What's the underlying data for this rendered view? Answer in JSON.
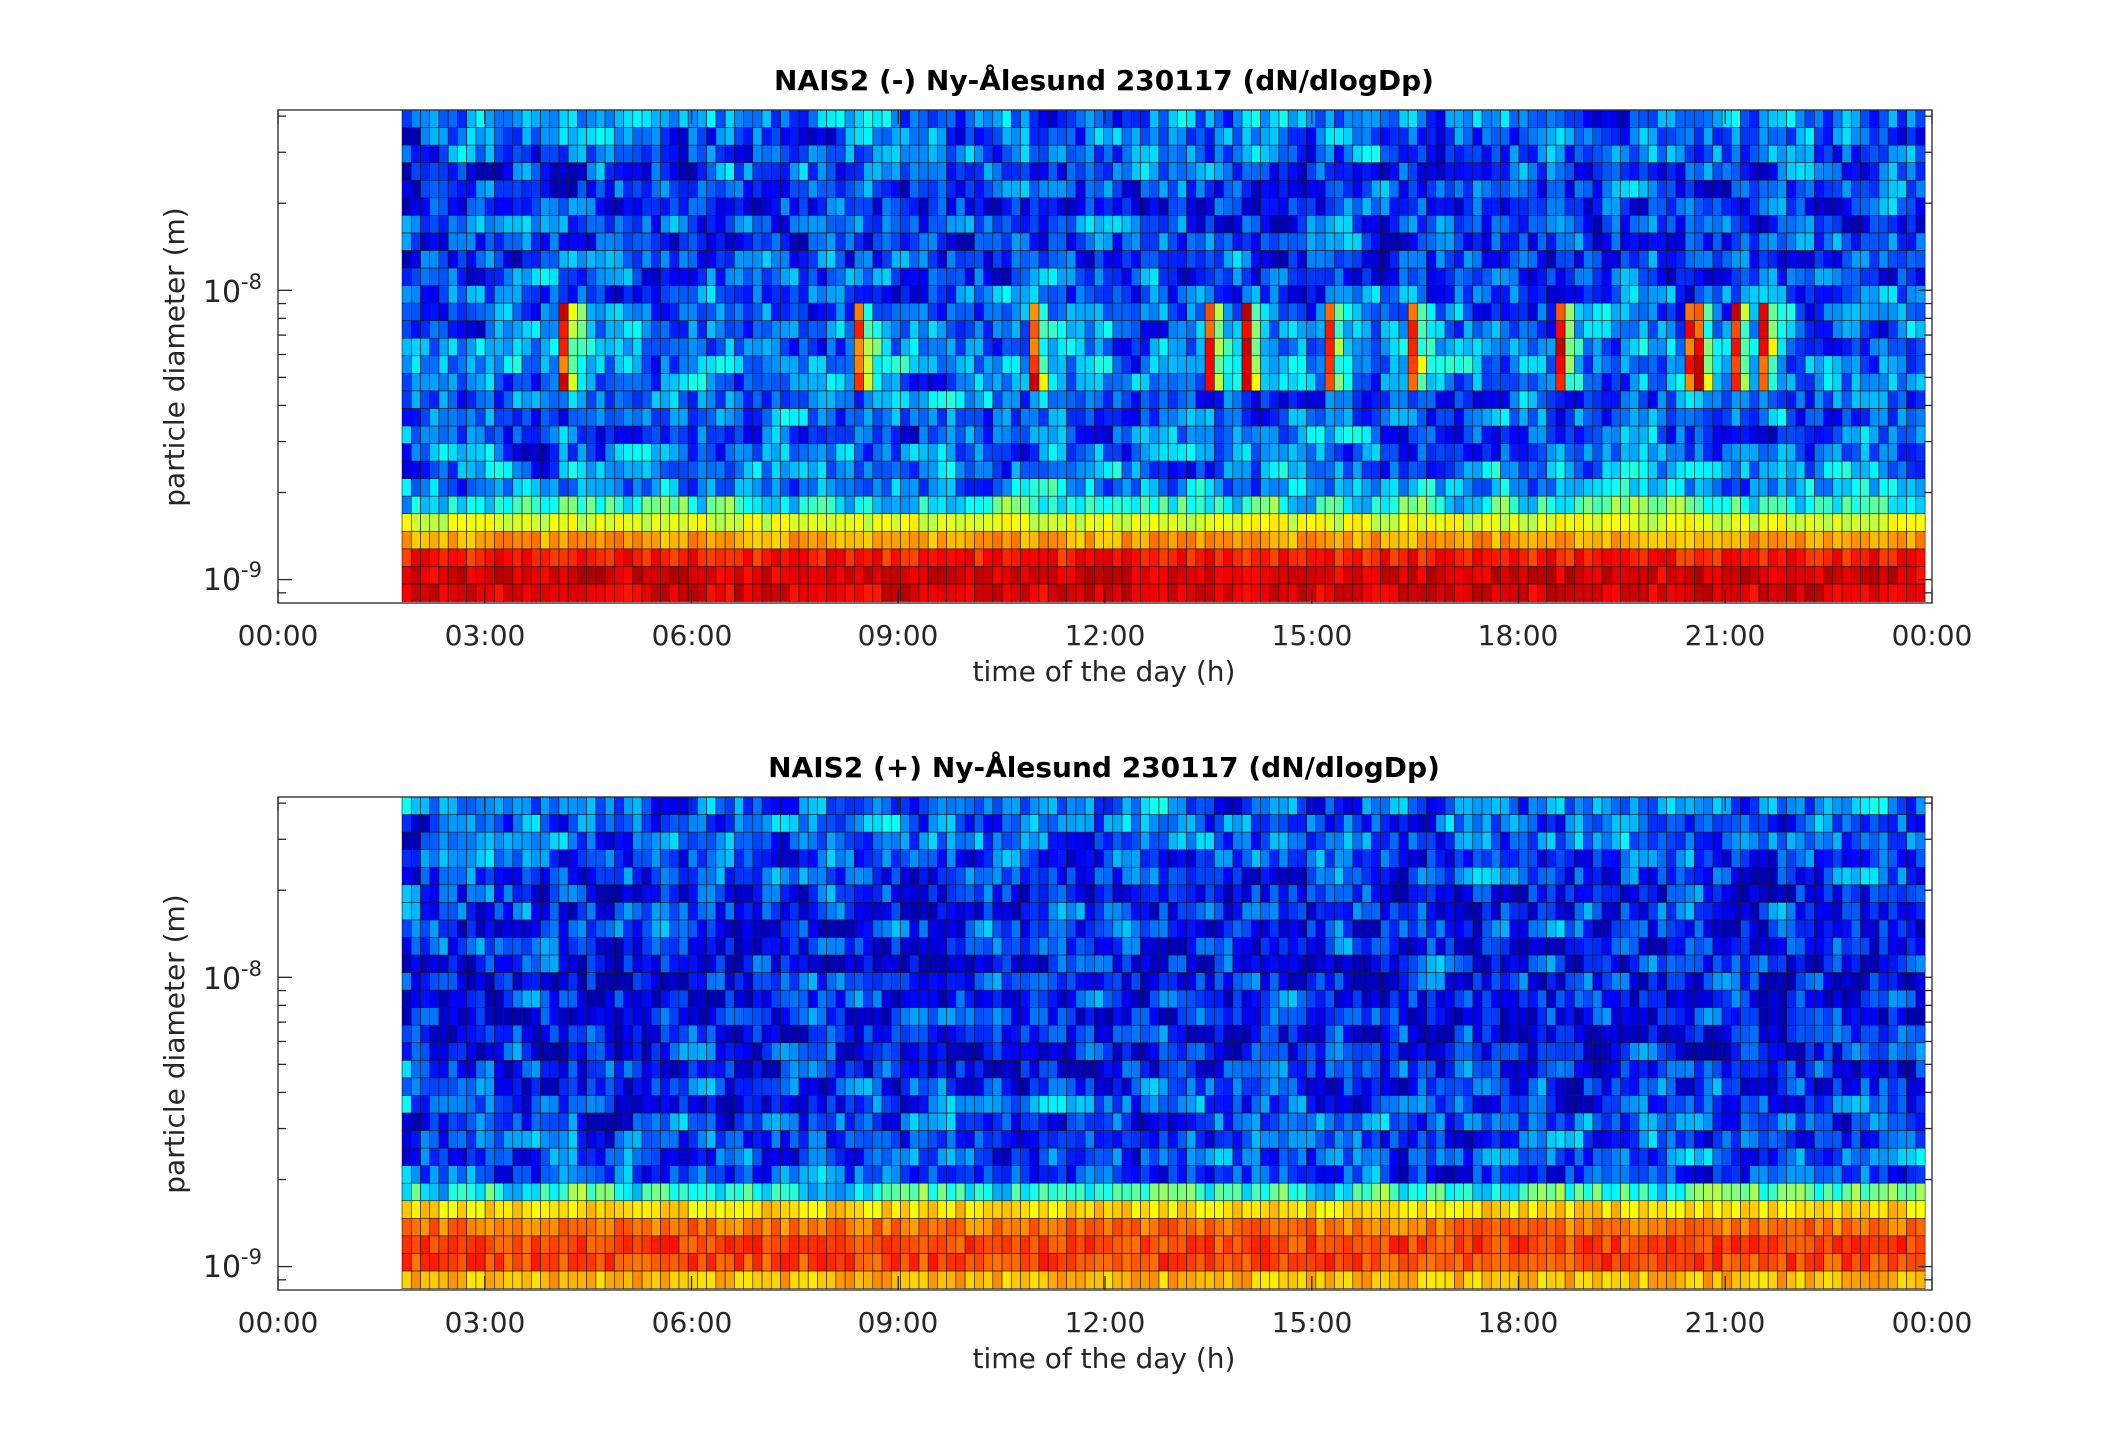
{
  "chart_data": [
    {
      "type": "heatmap",
      "title": "NAIS2 (-) Ny-Ålesund 230117 (dN/dlogDp)",
      "xlabel": "time of the day (h)",
      "ylabel": "particle diameter (m)",
      "x_tick_labels": [
        "00:00",
        "03:00",
        "06:00",
        "09:00",
        "12:00",
        "15:00",
        "18:00",
        "21:00",
        "00:00"
      ],
      "x_range_hours": [
        0,
        24
      ],
      "data_start_hour": 1.8,
      "data_end_hour": 23.9,
      "y_scale": "log",
      "y_range_m": [
        8.3e-10,
        4.2e-08
      ],
      "y_tick_labels": [
        {
          "base": "10",
          "exponent": "-9",
          "value": 1e-09
        },
        {
          "base": "10",
          "exponent": "-8",
          "value": 1e-08
        }
      ],
      "colormap": "jet",
      "grid": false,
      "legend": "none",
      "concentration_profile_by_size_m": [
        {
          "diameter_m": 8.9e-10,
          "relative_level": 0.9
        },
        {
          "diameter_m": 1e-09,
          "relative_level": 0.92
        },
        {
          "diameter_m": 1.13e-09,
          "relative_level": 0.88
        },
        {
          "diameter_m": 1.27e-09,
          "relative_level": 0.82
        },
        {
          "diameter_m": 1.43e-09,
          "relative_level": 0.66
        },
        {
          "diameter_m": 1.61e-09,
          "relative_level": 0.58
        },
        {
          "diameter_m": 1.81e-09,
          "relative_level": 0.42
        },
        {
          "diameter_m": 2.04e-09,
          "relative_level": 0.28
        },
        {
          "diameter_m": 3e-09,
          "relative_level": 0.22
        },
        {
          "diameter_m": 6e-09,
          "relative_level": 0.26
        },
        {
          "diameter_m": 1e-08,
          "relative_level": 0.2
        },
        {
          "diameter_m": 2e-08,
          "relative_level": 0.18
        },
        {
          "diameter_m": 4e-08,
          "relative_level": 0.24
        }
      ],
      "notes_visible": "high concentration (red/orange) band below ~1.5e-9 m throughout the day; sporadic high bursts near 6e-9 m"
    },
    {
      "type": "heatmap",
      "title": "NAIS2 (+) Ny-Ålesund 230117 (dN/dlogDp)",
      "xlabel": "time of the day (h)",
      "ylabel": "particle diameter (m)",
      "x_tick_labels": [
        "00:00",
        "03:00",
        "06:00",
        "09:00",
        "12:00",
        "15:00",
        "18:00",
        "21:00",
        "00:00"
      ],
      "x_range_hours": [
        0,
        24
      ],
      "data_start_hour": 1.8,
      "data_end_hour": 23.9,
      "y_scale": "log",
      "y_range_m": [
        8.3e-10,
        4.2e-08
      ],
      "y_tick_labels": [
        {
          "base": "10",
          "exponent": "-9",
          "value": 1e-09
        },
        {
          "base": "10",
          "exponent": "-8",
          "value": 1e-08
        }
      ],
      "colormap": "jet",
      "grid": false,
      "legend": "none",
      "concentration_profile_by_size_m": [
        {
          "diameter_m": 8.9e-10,
          "relative_level": 0.68
        },
        {
          "diameter_m": 1e-09,
          "relative_level": 0.8
        },
        {
          "diameter_m": 1.13e-09,
          "relative_level": 0.82
        },
        {
          "diameter_m": 1.27e-09,
          "relative_level": 0.8
        },
        {
          "diameter_m": 1.43e-09,
          "relative_level": 0.74
        },
        {
          "diameter_m": 1.61e-09,
          "relative_level": 0.64
        },
        {
          "diameter_m": 1.81e-09,
          "relative_level": 0.42
        },
        {
          "diameter_m": 2.04e-09,
          "relative_level": 0.2
        },
        {
          "diameter_m": 3e-09,
          "relative_level": 0.2
        },
        {
          "diameter_m": 6e-09,
          "relative_level": 0.14
        },
        {
          "diameter_m": 1e-08,
          "relative_level": 0.14
        },
        {
          "diameter_m": 2e-08,
          "relative_level": 0.18
        },
        {
          "diameter_m": 4e-08,
          "relative_level": 0.24
        }
      ],
      "notes_visible": "high concentration (orange/yellow) band below ~1.8e-9 m throughout the day"
    }
  ]
}
